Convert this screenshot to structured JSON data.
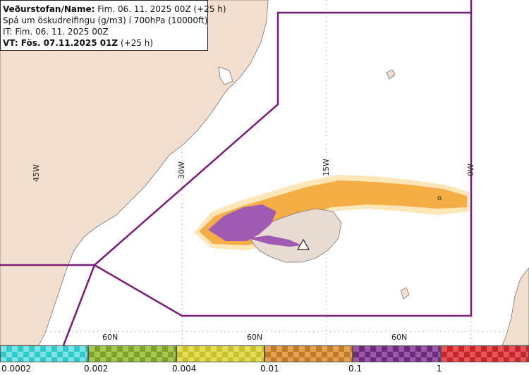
{
  "info": {
    "line1_label": "Veðurstofan/Name:",
    "line1_value": "Fim. 06. 11. 2025 00Z (+25 h)",
    "line2": "Spá um öskudreifingu (g/m3) í 700hPa (10000ft)",
    "line3": "IT: Fim. 06. 11. 2025 00Z",
    "line4_label": "VT: Fös. 07.11.2025 01Z",
    "line4_value": "(+25 h)"
  },
  "grid": {
    "lon_labels": [
      "45W",
      "30W",
      "15W",
      "0W"
    ],
    "lat_labels": [
      "60N",
      "60N",
      "60N"
    ]
  },
  "map_marks": {
    "marker": "o",
    "volcano_icon": "volcano-triangle-icon"
  },
  "colors": {
    "land": "#f2dfd0",
    "coast": "#777777",
    "boundary": "#7b1a7b",
    "orange": "#f5ad45",
    "purple": "#a05ab4",
    "light": "#fde3b0",
    "sparkle": "#b7e4ec"
  },
  "legend": {
    "swatches": [
      {
        "color": "#2fcbcb",
        "alt": "#7de3e3"
      },
      {
        "color": "#7ea22a",
        "alt": "#a8c653"
      },
      {
        "color": "#c9c22a",
        "alt": "#e4dd5c"
      },
      {
        "color": "#c57a24",
        "alt": "#e2a356"
      },
      {
        "color": "#6e2a7a",
        "alt": "#9a5aa8"
      },
      {
        "color": "#c8242a",
        "alt": "#e35658"
      }
    ],
    "ticks": [
      "0.0002",
      "0.002",
      "0.004",
      "0.01",
      "0.1",
      "1"
    ]
  }
}
